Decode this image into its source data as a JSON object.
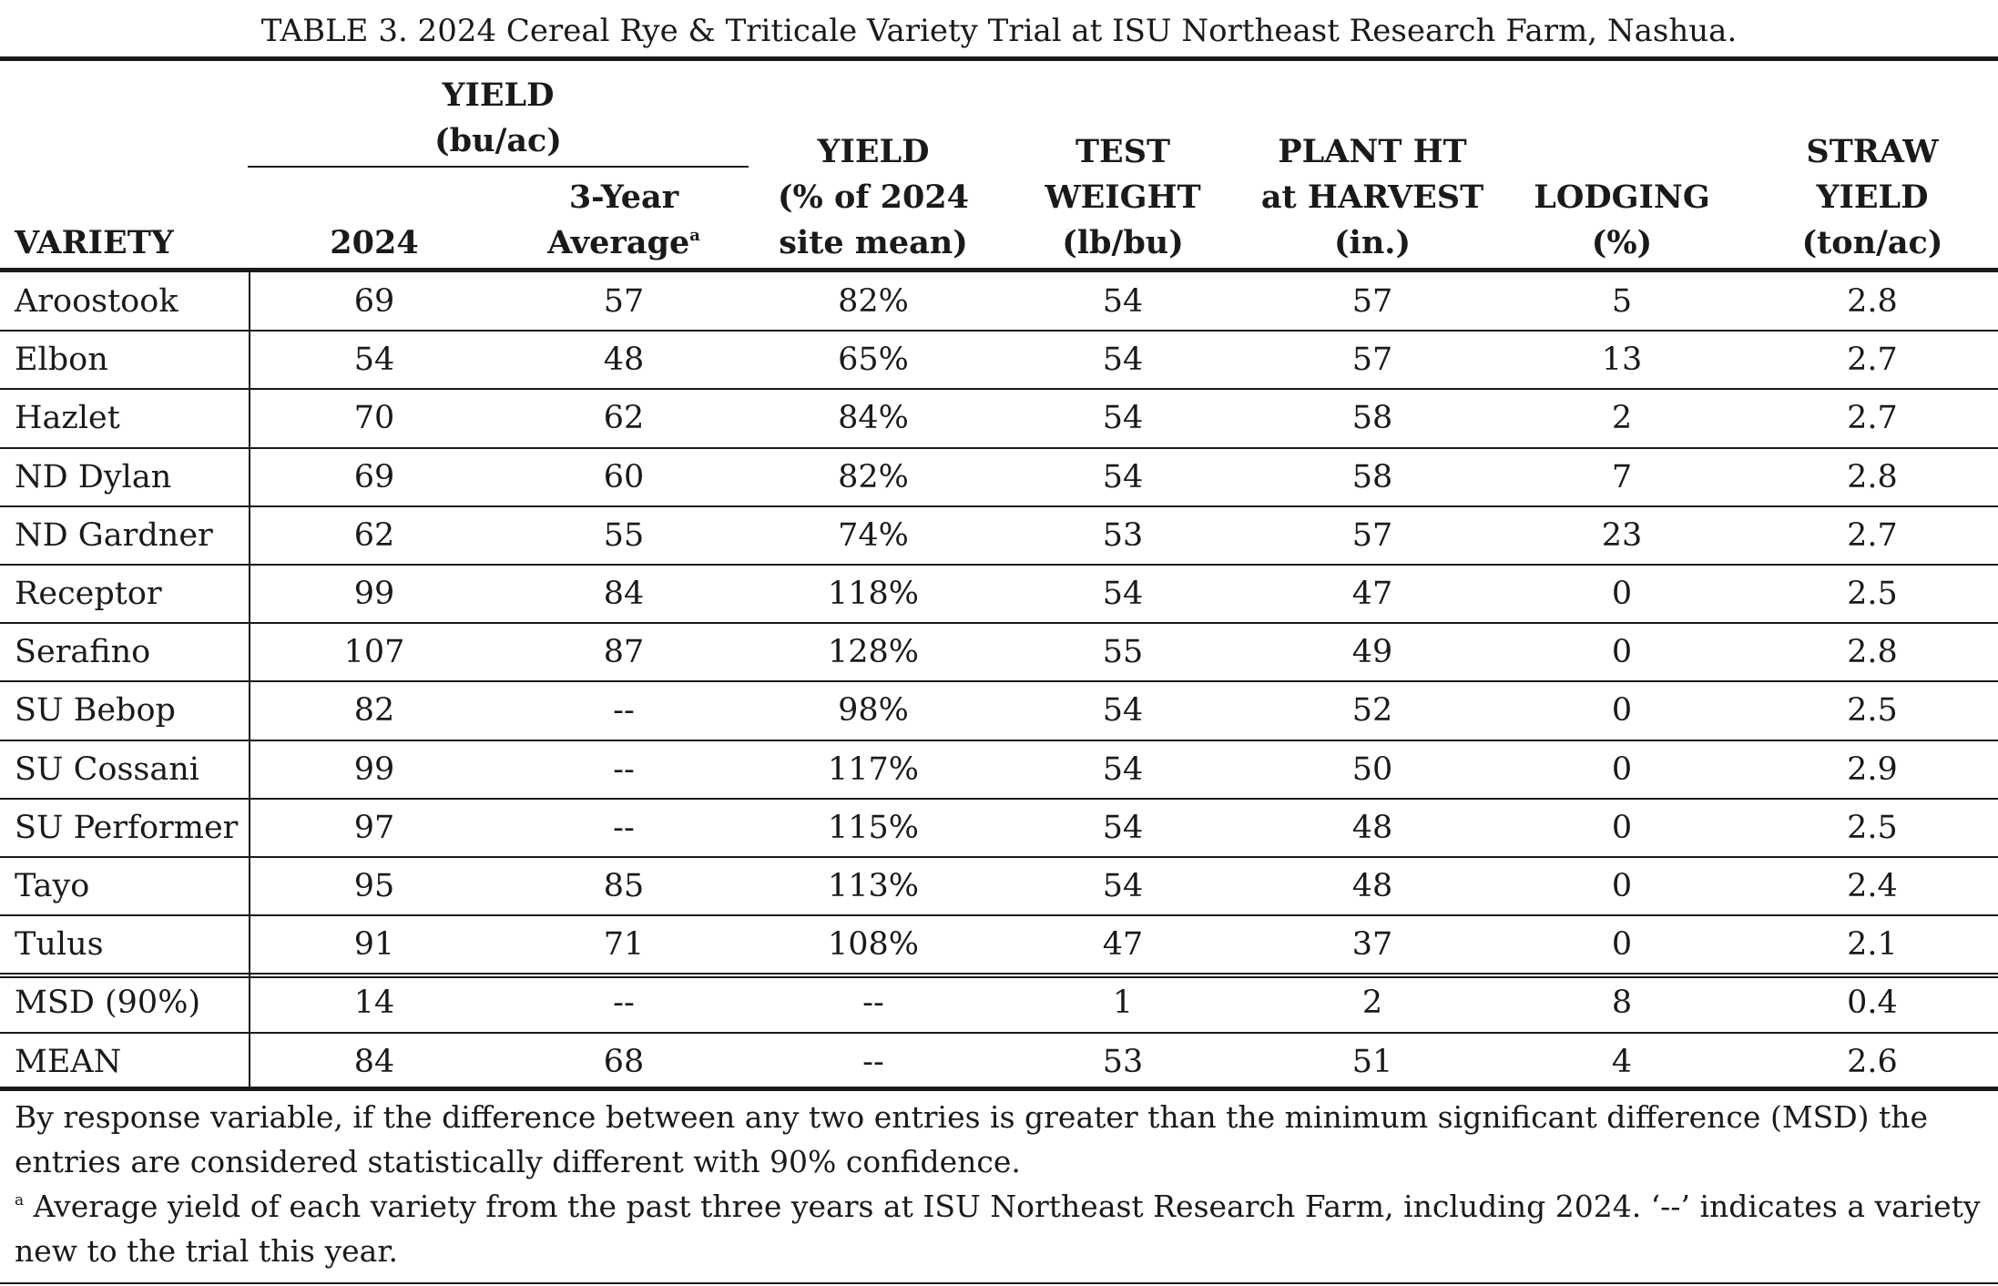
{
  "caption": "TABLE 3. 2024 Cereal Rye & Triticale Variety Trial at ISU Northeast Research Farm, Nashua.",
  "headers": {
    "group_yield_line1": "YIELD",
    "group_yield_line2": "(bu/ac)",
    "variety": "VARIETY",
    "y2024": "2024",
    "avg_line1": "3-Year",
    "avg_line2": "Average",
    "avg_sup": "a",
    "pct_line1": "YIELD",
    "pct_line2": "(% of 2024",
    "pct_line3": "site mean)",
    "tw_line1": "TEST",
    "tw_line2": "WEIGHT",
    "tw_line3": "(lb/bu)",
    "ph_line1": "PLANT HT",
    "ph_line2": "at HARVEST",
    "ph_line3": "(in.)",
    "lodg_line1": "LODGING",
    "lodg_line2": "(%)",
    "straw_line1": "STRAW",
    "straw_line2": "YIELD",
    "straw_line3": "(ton/ac)"
  },
  "rows": [
    [
      "Aroostook",
      "69",
      "57",
      "82%",
      "54",
      "57",
      "5",
      "2.8"
    ],
    [
      "Elbon",
      "54",
      "48",
      "65%",
      "54",
      "57",
      "13",
      "2.7"
    ],
    [
      "Hazlet",
      "70",
      "62",
      "84%",
      "54",
      "58",
      "2",
      "2.7"
    ],
    [
      "ND Dylan",
      "69",
      "60",
      "82%",
      "54",
      "58",
      "7",
      "2.8"
    ],
    [
      "ND Gardner",
      "62",
      "55",
      "74%",
      "53",
      "57",
      "23",
      "2.7"
    ],
    [
      "Receptor",
      "99",
      "84",
      "118%",
      "54",
      "47",
      "0",
      "2.5"
    ],
    [
      "Serafino",
      "107",
      "87",
      "128%",
      "55",
      "49",
      "0",
      "2.8"
    ],
    [
      "SU Bebop",
      "82",
      "--",
      "98%",
      "54",
      "52",
      "0",
      "2.5"
    ],
    [
      "SU Cossani",
      "99",
      "--",
      "117%",
      "54",
      "50",
      "0",
      "2.9"
    ],
    [
      "SU Performer",
      "97",
      "--",
      "115%",
      "54",
      "48",
      "0",
      "2.5"
    ],
    [
      "Tayo",
      "95",
      "85",
      "113%",
      "54",
      "48",
      "0",
      "2.4"
    ],
    [
      "Tulus",
      "91",
      "71",
      "108%",
      "47",
      "37",
      "0",
      "2.1"
    ]
  ],
  "summary_rows": [
    [
      "MSD (90%)",
      "14",
      "--",
      "--",
      "1",
      "2",
      "8",
      "0.4"
    ],
    [
      "MEAN",
      "84",
      "68",
      "--",
      "53",
      "51",
      "4",
      "2.6"
    ]
  ],
  "notes": {
    "msd": "By response variable, if the difference between any two entries is greater than the minimum significant difference (MSD) the entries are considered statistically different with 90% confidence.",
    "footnote_marker": "a",
    "footnote": " Average yield of each variety from the past three years at ISU Northeast Research Farm, including 2024. ‘--’ indicates a variety new to the trial this year."
  }
}
